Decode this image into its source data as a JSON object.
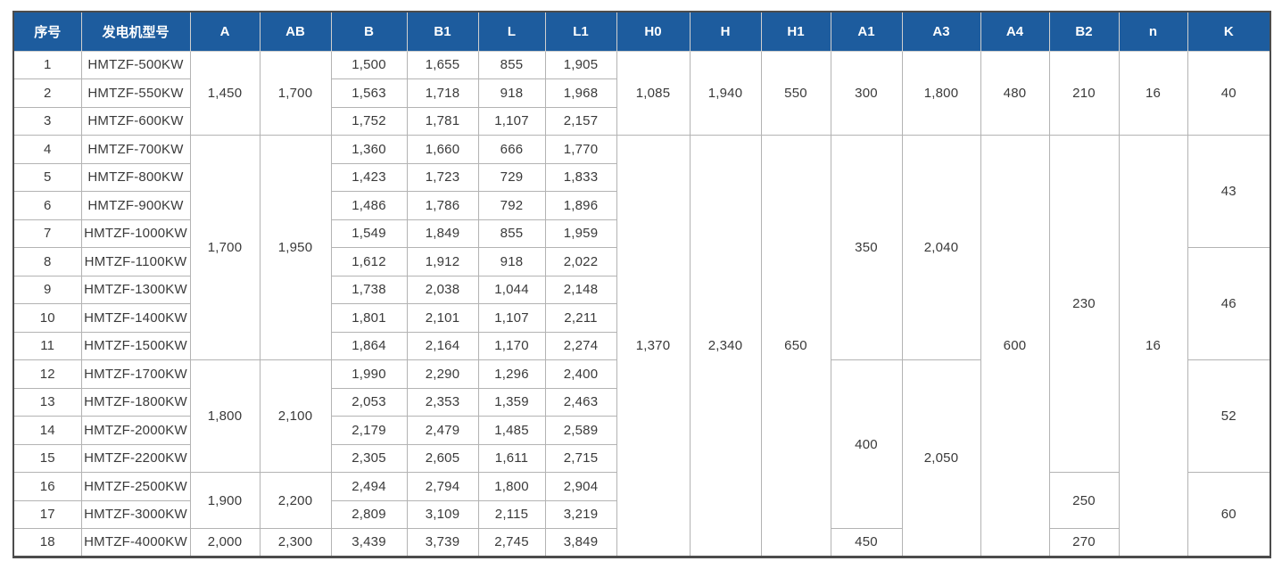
{
  "colors": {
    "header_bg": "#1d5c9e",
    "header_text": "#ffffff",
    "border_outer": "#4c4c4c",
    "border_inner": "#b3b3b3",
    "cell_text": "#3a3a3a"
  },
  "table": {
    "columns": [
      {
        "key": "index",
        "label": "序号"
      },
      {
        "key": "model",
        "label": "发电机型号"
      },
      {
        "key": "A",
        "label": "A"
      },
      {
        "key": "AB",
        "label": "AB"
      },
      {
        "key": "B",
        "label": "B"
      },
      {
        "key": "B1",
        "label": "B1"
      },
      {
        "key": "L",
        "label": "L"
      },
      {
        "key": "L1",
        "label": "L1"
      },
      {
        "key": "H0",
        "label": "H0"
      },
      {
        "key": "H",
        "label": "H"
      },
      {
        "key": "H1",
        "label": "H1"
      },
      {
        "key": "A1",
        "label": "A1"
      },
      {
        "key": "A3",
        "label": "A3"
      },
      {
        "key": "A4",
        "label": "A4"
      },
      {
        "key": "B2",
        "label": "B2"
      },
      {
        "key": "n",
        "label": "n"
      },
      {
        "key": "K",
        "label": "K"
      }
    ],
    "rows": [
      [
        "1",
        "HMTZF-500KW",
        {
          "t": "1,450",
          "rs": 3
        },
        {
          "t": "1,700",
          "rs": 3
        },
        "1,500",
        "1,655",
        "855",
        "1,905",
        {
          "t": "1,085",
          "rs": 3
        },
        {
          "t": "1,940",
          "rs": 3
        },
        {
          "t": "550",
          "rs": 3
        },
        {
          "t": "300",
          "rs": 3
        },
        {
          "t": "1,800",
          "rs": 3
        },
        {
          "t": "480",
          "rs": 3
        },
        {
          "t": "210",
          "rs": 3
        },
        {
          "t": "16",
          "rs": 3
        },
        {
          "t": "40",
          "rs": 3
        }
      ],
      [
        "2",
        "HMTZF-550KW",
        "1,563",
        "1,718",
        "918",
        "1,968"
      ],
      [
        "3",
        "HMTZF-600KW",
        "1,752",
        "1,781",
        "1,107",
        "2,157"
      ],
      [
        "4",
        "HMTZF-700KW",
        {
          "t": "1,700",
          "rs": 8
        },
        {
          "t": "1,950",
          "rs": 8
        },
        "1,360",
        "1,660",
        "666",
        "1,770",
        {
          "t": "1,370",
          "rs": 15
        },
        {
          "t": "2,340",
          "rs": 15
        },
        {
          "t": "650",
          "rs": 15
        },
        {
          "t": "350",
          "rs": 8
        },
        {
          "t": "2,040",
          "rs": 8
        },
        {
          "t": "600",
          "rs": 15
        },
        {
          "t": "230",
          "rs": 12
        },
        {
          "t": "16",
          "rs": 15
        },
        {
          "t": "43",
          "rs": 4
        }
      ],
      [
        "5",
        "HMTZF-800KW",
        "1,423",
        "1,723",
        "729",
        "1,833"
      ],
      [
        "6",
        "HMTZF-900KW",
        "1,486",
        "1,786",
        "792",
        "1,896"
      ],
      [
        "7",
        "HMTZF-1000KW",
        "1,549",
        "1,849",
        "855",
        "1,959"
      ],
      [
        "8",
        "HMTZF-1100KW",
        "1,612",
        "1,912",
        "918",
        "2,022",
        {
          "t": "46",
          "rs": 4
        }
      ],
      [
        "9",
        "HMTZF-1300KW",
        "1,738",
        "2,038",
        "1,044",
        "2,148"
      ],
      [
        "10",
        "HMTZF-1400KW",
        "1,801",
        "2,101",
        "1,107",
        "2,211"
      ],
      [
        "11",
        "HMTZF-1500KW",
        "1,864",
        "2,164",
        "1,170",
        "2,274"
      ],
      [
        "12",
        "HMTZF-1700KW",
        {
          "t": "1,800",
          "rs": 4
        },
        {
          "t": "2,100",
          "rs": 4
        },
        "1,990",
        "2,290",
        "1,296",
        "2,400",
        {
          "t": "400",
          "rs": 6
        },
        {
          "t": "2,050",
          "rs": 7
        },
        {
          "t": "52",
          "rs": 4
        }
      ],
      [
        "13",
        "HMTZF-1800KW",
        "2,053",
        "2,353",
        "1,359",
        "2,463"
      ],
      [
        "14",
        "HMTZF-2000KW",
        "2,179",
        "2,479",
        "1,485",
        "2,589"
      ],
      [
        "15",
        "HMTZF-2200KW",
        "2,305",
        "2,605",
        "1,611",
        "2,715"
      ],
      [
        "16",
        "HMTZF-2500KW",
        {
          "t": "1,900",
          "rs": 2
        },
        {
          "t": "2,200",
          "rs": 2
        },
        "2,494",
        "2,794",
        "1,800",
        "2,904",
        {
          "t": "250",
          "rs": 2
        },
        {
          "t": "60",
          "rs": 3
        }
      ],
      [
        "17",
        "HMTZF-3000KW",
        "2,809",
        "3,109",
        "2,115",
        "3,219"
      ],
      [
        "18",
        "HMTZF-4000KW",
        "2,000",
        "2,300",
        "3,439",
        "3,739",
        "2,745",
        "3,849",
        "450",
        "270"
      ]
    ]
  }
}
